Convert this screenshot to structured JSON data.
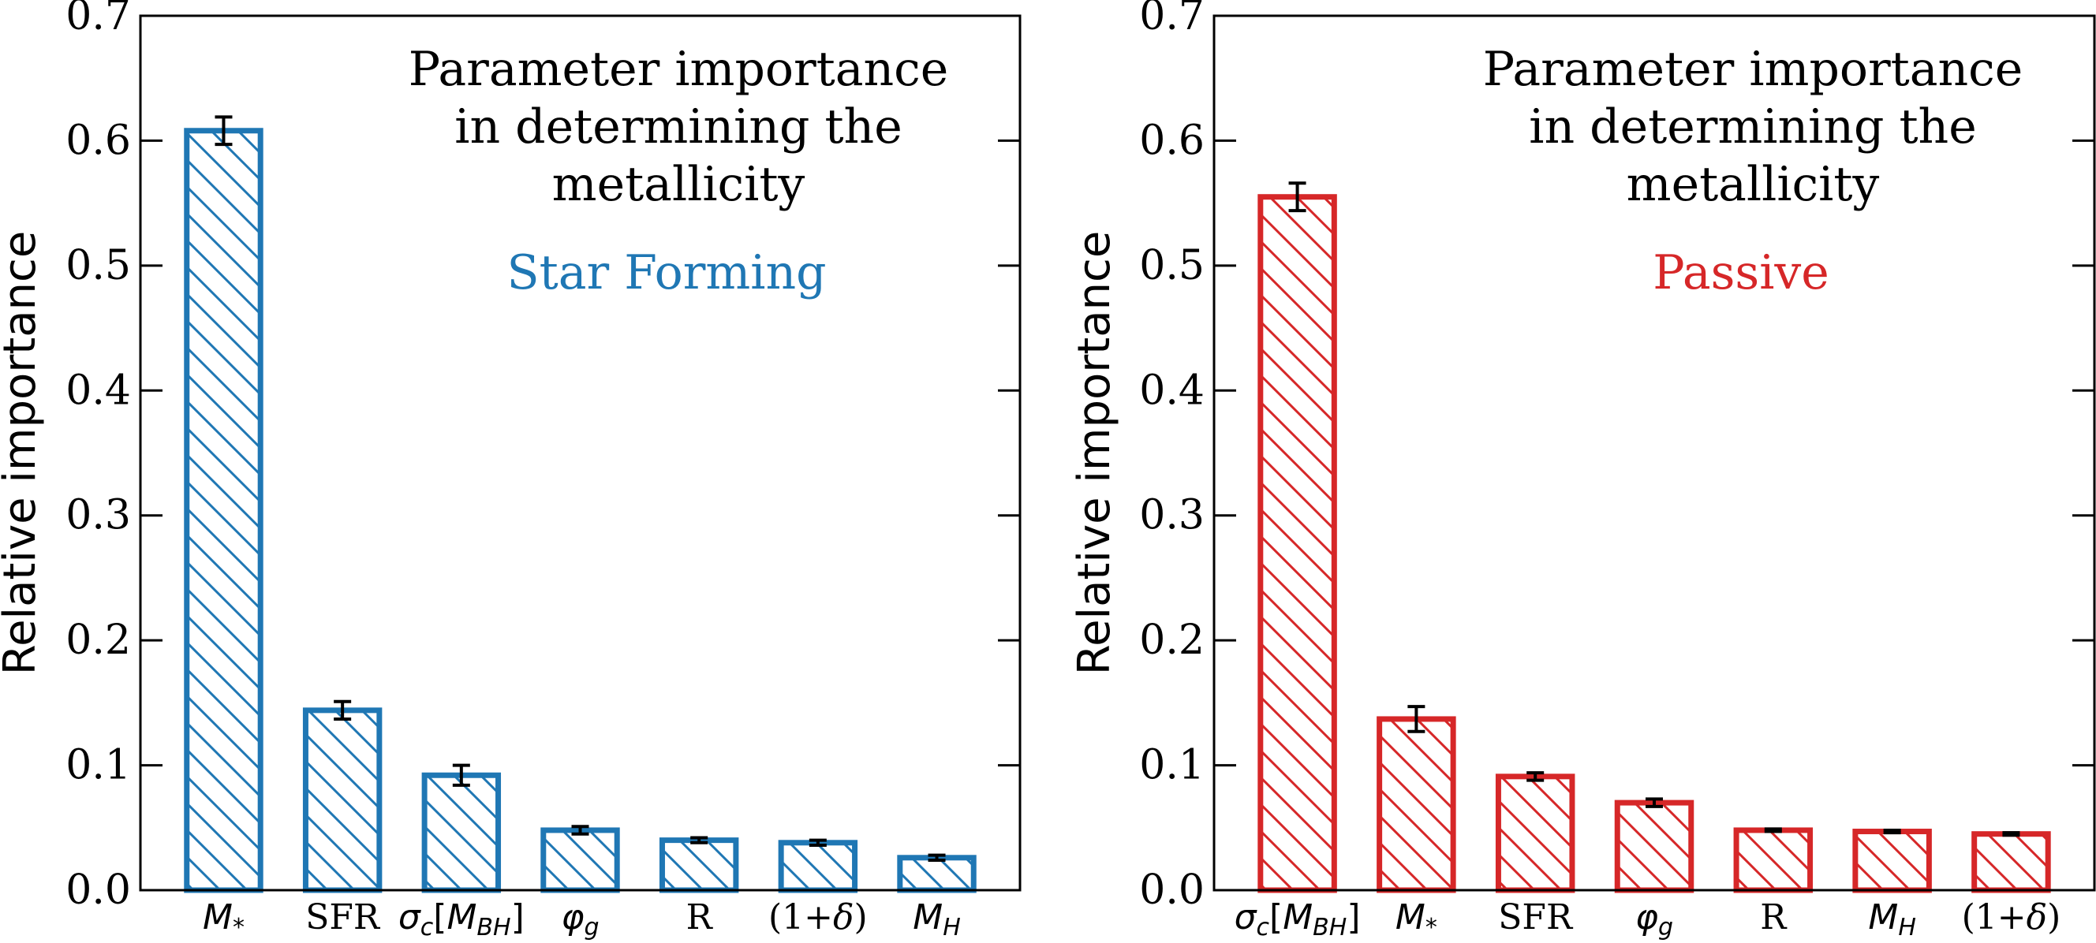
{
  "chart_data": [
    {
      "type": "bar",
      "title": "Parameter importance in determining the metallicity",
      "title_lines": [
        "Parameter importance",
        "in determining the",
        "metallicity"
      ],
      "subtitle": "Star Forming",
      "ylabel": "Relative importance",
      "xlabel": "",
      "ylim": [
        0,
        0.7
      ],
      "yticks": [
        0.0,
        0.1,
        0.2,
        0.3,
        0.4,
        0.5,
        0.6,
        0.7
      ],
      "ytick_labels": [
        "0.0",
        "0.1",
        "0.2",
        "0.3",
        "0.4",
        "0.5",
        "0.6",
        "0.7"
      ],
      "categories": [
        "M*",
        "SFR",
        "σc[MBH]",
        "φg",
        "R",
        "(1+δ)",
        "MH"
      ],
      "values": [
        0.608,
        0.144,
        0.092,
        0.048,
        0.04,
        0.038,
        0.026
      ],
      "errors": [
        0.011,
        0.007,
        0.008,
        0.003,
        0.002,
        0.002,
        0.002
      ],
      "color": "#1f77b4",
      "hatch": "diagonal",
      "grid": false
    },
    {
      "type": "bar",
      "title": "Parameter importance in determining the metallicity",
      "title_lines": [
        "Parameter importance",
        "in determining the",
        "metallicity"
      ],
      "subtitle": "Passive",
      "ylabel": "Relative importance",
      "xlabel": "",
      "ylim": [
        0,
        0.7
      ],
      "yticks": [
        0.0,
        0.1,
        0.2,
        0.3,
        0.4,
        0.5,
        0.6,
        0.7
      ],
      "ytick_labels": [
        "0.0",
        "0.1",
        "0.2",
        "0.3",
        "0.4",
        "0.5",
        "0.6",
        "0.7"
      ],
      "categories": [
        "σc[MBH]",
        "M*",
        "SFR",
        "φg",
        "R",
        "MH",
        "(1+δ)"
      ],
      "values": [
        0.555,
        0.137,
        0.091,
        0.07,
        0.048,
        0.047,
        0.045
      ],
      "errors": [
        0.011,
        0.01,
        0.003,
        0.003,
        0.001,
        0.001,
        0.001
      ],
      "color": "#d62728",
      "hatch": "diagonal",
      "grid": false
    }
  ]
}
